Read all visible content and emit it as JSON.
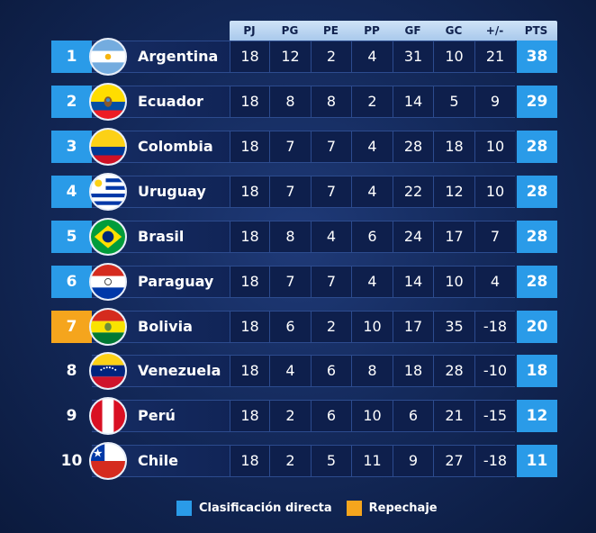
{
  "columns": [
    "PJ",
    "PG",
    "PE",
    "PP",
    "GF",
    "GC",
    "+/-",
    "PTS"
  ],
  "colors": {
    "direct": "#2a9be8",
    "repechaje": "#f5a51d"
  },
  "rows": [
    {
      "pos": "1",
      "team": "Argentina",
      "flag": "argentina-flag",
      "pj": "18",
      "pg": "12",
      "pe": "2",
      "pp": "4",
      "gf": "31",
      "gc": "10",
      "diff": "21",
      "pts": "38",
      "status": "direct"
    },
    {
      "pos": "2",
      "team": "Ecuador",
      "flag": "ecuador-flag",
      "pj": "18",
      "pg": "8",
      "pe": "8",
      "pp": "2",
      "gf": "14",
      "gc": "5",
      "diff": "9",
      "pts": "29",
      "status": "direct"
    },
    {
      "pos": "3",
      "team": "Colombia",
      "flag": "colombia-flag",
      "pj": "18",
      "pg": "7",
      "pe": "7",
      "pp": "4",
      "gf": "28",
      "gc": "18",
      "diff": "10",
      "pts": "28",
      "status": "direct"
    },
    {
      "pos": "4",
      "team": "Uruguay",
      "flag": "uruguay-flag",
      "pj": "18",
      "pg": "7",
      "pe": "7",
      "pp": "4",
      "gf": "22",
      "gc": "12",
      "diff": "10",
      "pts": "28",
      "status": "direct"
    },
    {
      "pos": "5",
      "team": "Brasil",
      "flag": "brasil-flag",
      "pj": "18",
      "pg": "8",
      "pe": "4",
      "pp": "6",
      "gf": "24",
      "gc": "17",
      "diff": "7",
      "pts": "28",
      "status": "direct"
    },
    {
      "pos": "6",
      "team": "Paraguay",
      "flag": "paraguay-flag",
      "pj": "18",
      "pg": "7",
      "pe": "7",
      "pp": "4",
      "gf": "14",
      "gc": "10",
      "diff": "4",
      "pts": "28",
      "status": "direct"
    },
    {
      "pos": "7",
      "team": "Bolivia",
      "flag": "bolivia-flag",
      "pj": "18",
      "pg": "6",
      "pe": "2",
      "pp": "10",
      "gf": "17",
      "gc": "35",
      "diff": "-18",
      "pts": "20",
      "status": "repechaje"
    },
    {
      "pos": "8",
      "team": "Venezuela",
      "flag": "venezuela-flag",
      "pj": "18",
      "pg": "4",
      "pe": "6",
      "pp": "8",
      "gf": "18",
      "gc": "28",
      "diff": "-10",
      "pts": "18",
      "status": "none"
    },
    {
      "pos": "9",
      "team": "Perú",
      "flag": "peru-flag",
      "pj": "18",
      "pg": "2",
      "pe": "6",
      "pp": "10",
      "gf": "6",
      "gc": "21",
      "diff": "-15",
      "pts": "12",
      "status": "none"
    },
    {
      "pos": "10",
      "team": "Chile",
      "flag": "chile-flag",
      "pj": "18",
      "pg": "2",
      "pe": "5",
      "pp": "11",
      "gf": "9",
      "gc": "27",
      "diff": "-18",
      "pts": "11",
      "status": "none"
    }
  ],
  "legend": {
    "direct_label": "Clasificación directa",
    "repechaje_label": "Repechaje"
  }
}
